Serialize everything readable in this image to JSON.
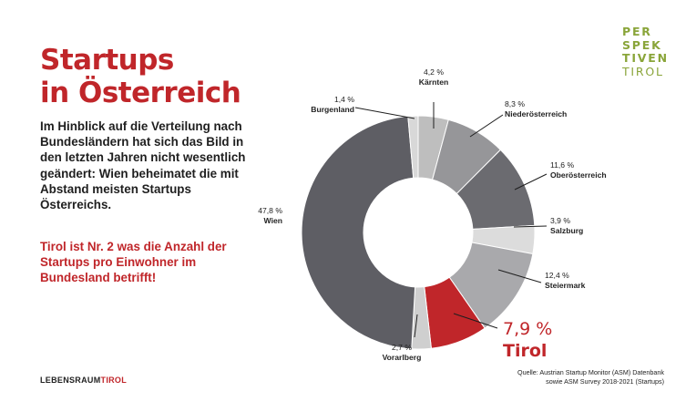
{
  "title_line1": "Startups",
  "title_line2": "in Österreich",
  "body_text": "Im Hinblick auf die Verteilung nach Bundesländern hat sich das Bild in den letzten Jahren nicht wesentlich geändert: Wien beheimatet die mit Abstand meisten Startups Österreichs.",
  "highlight_text": "Tirol ist Nr. 2 was die Anzahl der Startups pro Einwohner im Bundesland betrifft!",
  "bottom_logo": {
    "main": "LEBENSRAUM",
    "accent": "TIROL"
  },
  "brand_logo": [
    "PER",
    "SPEK",
    "TIVEN",
    "TIROL"
  ],
  "source": [
    "Quelle: Austrian Startup Monitor (ASM) Datenbank",
    "sowie ASM Survey 2018-2021 (Startups)"
  ],
  "chart_data": {
    "type": "pie",
    "donut": true,
    "highlight": "Tirol",
    "highlight_color": "#c0262a",
    "slices": [
      {
        "label": "Kärnten",
        "value": 4.2,
        "display": "4,2 %",
        "color": "#bebebe"
      },
      {
        "label": "Niederösterreich",
        "value": 8.3,
        "display": "8,3 %",
        "color": "#969699"
      },
      {
        "label": "Oberösterreich",
        "value": 11.6,
        "display": "11,6 %",
        "color": "#6b6b70"
      },
      {
        "label": "Salzburg",
        "value": 3.9,
        "display": "3,9 %",
        "color": "#dcdcdc"
      },
      {
        "label": "Steiermark",
        "value": 12.4,
        "display": "12,4 %",
        "color": "#a9a9ac"
      },
      {
        "label": "Tirol",
        "value": 7.9,
        "display": "7,9 %",
        "color": "#c0262a"
      },
      {
        "label": "Vorarlberg",
        "value": 2.7,
        "display": "2,7 %",
        "color": "#cfcfcf"
      },
      {
        "label": "Wien",
        "value": 47.8,
        "display": "47,8 %",
        "color": "#5e5e64"
      },
      {
        "label": "Burgenland",
        "value": 1.4,
        "display": "1,4 %",
        "color": "#d8d8d8"
      }
    ]
  }
}
